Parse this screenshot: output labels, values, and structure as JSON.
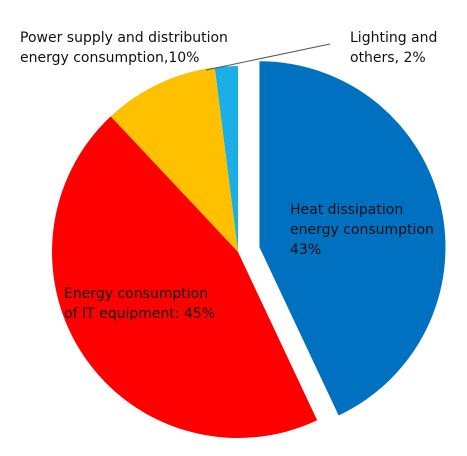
{
  "chart_data": {
    "type": "pie",
    "values": [
      43,
      45,
      10,
      2
    ],
    "value_labels": [
      "Heat dissipation\nenergy consumption\n43%",
      "Energy consumption\nof IT equipment: 45%",
      "Power supply and distribution\nenergy consumption,10%",
      "Lighting and\nothers, 2%"
    ],
    "colors": [
      "#0070c0",
      "#ff0000",
      "#ffc000",
      "#1aafe6"
    ]
  }
}
